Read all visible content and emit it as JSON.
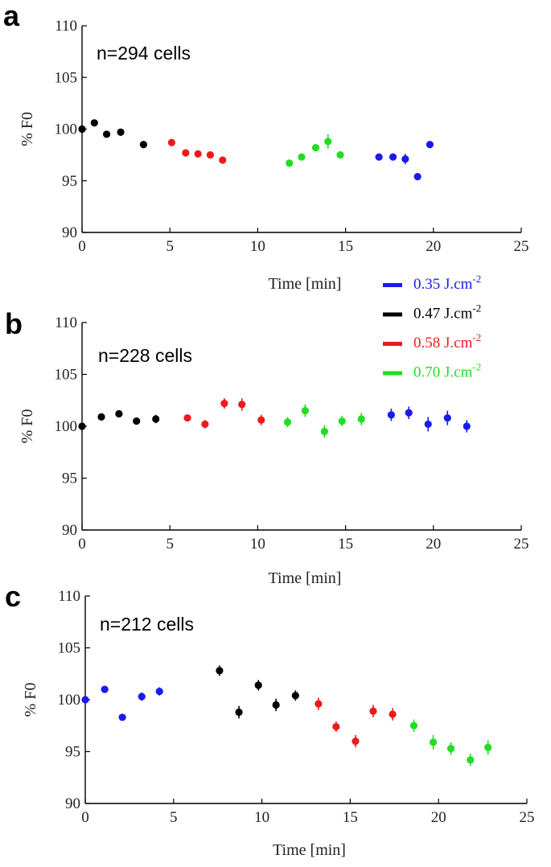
{
  "figure": {
    "legend": [
      {
        "label": "0.35 J.cm",
        "exp": "-2",
        "color": "#1a1aee"
      },
      {
        "label": "0.47 J.cm",
        "exp": "-2",
        "color": "#000000"
      },
      {
        "label": "0.58 J.cm",
        "exp": "-2",
        "color": "#ee1a1a"
      },
      {
        "label": "0.70 J.cm",
        "exp": "-2",
        "color": "#22dd22"
      }
    ]
  },
  "chart_data": [
    {
      "type": "scatter",
      "panel": "a",
      "annotation": "n=294 cells",
      "xlabel": "Time [min]",
      "ylabel": "% F0",
      "xlim": [
        0,
        25
      ],
      "ylim": [
        90,
        110
      ],
      "xticks": [
        "0",
        "5",
        "10",
        "15",
        "20",
        "25"
      ],
      "yticks": [
        "90",
        "95",
        "100",
        "105",
        "110"
      ],
      "series": [
        {
          "name": "0.47 J.cm-2",
          "color": "#000000",
          "x": [
            0,
            0.7,
            1.4,
            2.2,
            3.5
          ],
          "y": [
            100,
            100.6,
            99.5,
            99.7,
            98.5
          ],
          "err": [
            0,
            0,
            0,
            0,
            0
          ]
        },
        {
          "name": "0.58 J.cm-2",
          "color": "#ee1a1a",
          "x": [
            5.1,
            5.9,
            6.6,
            7.3,
            8.0
          ],
          "y": [
            98.7,
            97.7,
            97.6,
            97.5,
            97.0
          ],
          "err": [
            0,
            0,
            0,
            0,
            0
          ]
        },
        {
          "name": "0.70 J.cm-2",
          "color": "#22dd22",
          "x": [
            11.8,
            12.5,
            13.3,
            14.0,
            14.7
          ],
          "y": [
            96.7,
            97.3,
            98.2,
            98.8,
            97.5
          ],
          "err": [
            0,
            0,
            0,
            0.7,
            0
          ]
        },
        {
          "name": "0.35 J.cm-2",
          "color": "#1a1aee",
          "x": [
            16.9,
            17.7,
            18.4,
            19.1,
            19.8
          ],
          "y": [
            97.3,
            97.3,
            97.1,
            95.4,
            98.5
          ],
          "err": [
            0,
            0,
            0.5,
            0,
            0
          ]
        }
      ]
    },
    {
      "type": "scatter",
      "panel": "b",
      "annotation": "n=228 cells",
      "xlabel": "Time [min]",
      "ylabel": "% F0",
      "xlim": [
        0,
        25
      ],
      "ylim": [
        90,
        110
      ],
      "xticks": [
        "0",
        "5",
        "10",
        "15",
        "20",
        "25"
      ],
      "yticks": [
        "90",
        "95",
        "100",
        "105",
        "110"
      ],
      "series": [
        {
          "name": "0.47 J.cm-2",
          "color": "#000000",
          "x": [
            0,
            1.1,
            2.1,
            3.1,
            4.2
          ],
          "y": [
            100,
            100.9,
            101.2,
            100.5,
            100.7
          ],
          "err": [
            0,
            0,
            0,
            0,
            0.4
          ]
        },
        {
          "name": "0.58 J.cm-2",
          "color": "#ee1a1a",
          "x": [
            6.0,
            7.0,
            8.1,
            9.1,
            10.2
          ],
          "y": [
            100.8,
            100.2,
            102.2,
            102.1,
            100.6
          ],
          "err": [
            0,
            0.4,
            0.5,
            0.6,
            0.5
          ]
        },
        {
          "name": "0.70 J.cm-2",
          "color": "#22dd22",
          "x": [
            11.7,
            12.7,
            13.8,
            14.8,
            15.9
          ],
          "y": [
            100.4,
            101.5,
            99.5,
            100.5,
            100.7
          ],
          "err": [
            0.5,
            0.6,
            0.6,
            0.5,
            0.6
          ]
        },
        {
          "name": "0.35 J.cm-2",
          "color": "#1a1aee",
          "x": [
            17.6,
            18.6,
            19.7,
            20.8,
            21.9
          ],
          "y": [
            101.1,
            101.3,
            100.2,
            100.8,
            100.0
          ],
          "err": [
            0.6,
            0.6,
            0.7,
            0.7,
            0.6
          ]
        }
      ]
    },
    {
      "type": "scatter",
      "panel": "c",
      "annotation": "n=212 cells",
      "xlabel": "Time [min]",
      "ylabel": "% F0",
      "xlim": [
        0,
        25
      ],
      "ylim": [
        90,
        110
      ],
      "xticks": [
        "0",
        "5",
        "10",
        "15",
        "20",
        "25"
      ],
      "yticks": [
        "90",
        "95",
        "100",
        "105",
        "110"
      ],
      "series": [
        {
          "name": "0.35 J.cm-2",
          "color": "#1a1aee",
          "x": [
            0,
            1.1,
            2.1,
            3.2,
            4.2
          ],
          "y": [
            100,
            101,
            98.3,
            100.3,
            100.8
          ],
          "err": [
            0,
            0,
            0,
            0.4,
            0.4
          ]
        },
        {
          "name": "0.47 J.cm-2",
          "color": "#000000",
          "x": [
            7.6,
            8.7,
            9.8,
            10.8,
            11.9
          ],
          "y": [
            102.8,
            98.8,
            101.4,
            99.5,
            100.4
          ],
          "err": [
            0.5,
            0.6,
            0.5,
            0.6,
            0.5
          ]
        },
        {
          "name": "0.58 J.cm-2",
          "color": "#ee1a1a",
          "x": [
            13.2,
            14.2,
            15.3,
            16.3,
            17.4
          ],
          "y": [
            99.6,
            97.4,
            96.0,
            98.9,
            98.6
          ],
          "err": [
            0.6,
            0.5,
            0.6,
            0.6,
            0.6
          ]
        },
        {
          "name": "0.70 J.cm-2",
          "color": "#22dd22",
          "x": [
            18.6,
            19.7,
            20.7,
            21.8,
            22.8
          ],
          "y": [
            97.5,
            95.9,
            95.3,
            94.2,
            95.4
          ],
          "err": [
            0.6,
            0.7,
            0.6,
            0.6,
            0.7
          ]
        }
      ]
    }
  ]
}
